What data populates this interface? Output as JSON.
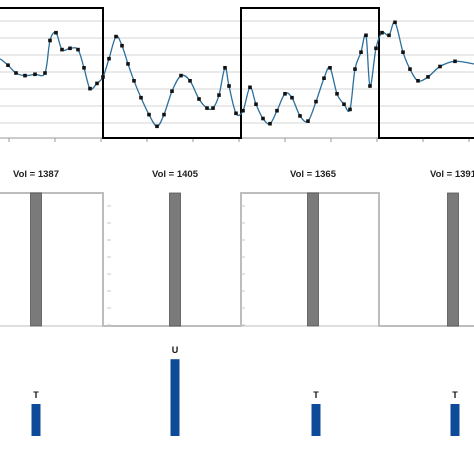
{
  "colors": {
    "signal": "#2c6f9c",
    "marker": "#111111",
    "square_wave": "#000000",
    "volume_bar": "#7a7a7a",
    "volume_outline": "#bdbdbd",
    "flag_bar": "#0d4a98",
    "grid": "#c8c8c8"
  },
  "chart_data": [
    {
      "type": "line",
      "title": "",
      "xlabel": "",
      "ylabel": "",
      "xlim": [
        0,
        474
      ],
      "ylim": [
        0,
        10
      ],
      "grid": true,
      "series": [
        {
          "values": [
            [
              0,
              6.1
            ],
            [
              8,
              5.6
            ],
            [
              16,
              5.0
            ],
            [
              25,
              4.8
            ],
            [
              35,
              4.9
            ],
            [
              45,
              5.0
            ],
            [
              50,
              7.5
            ],
            [
              56,
              8.1
            ],
            [
              62,
              6.8
            ],
            [
              70,
              6.9
            ],
            [
              78,
              6.8
            ],
            [
              84,
              5.4
            ],
            [
              90,
              3.8
            ],
            [
              97,
              4.2
            ],
            [
              103,
              4.7
            ],
            [
              109,
              6.1
            ],
            [
              116,
              7.8
            ],
            [
              122,
              7.1
            ],
            [
              128,
              5.7
            ],
            [
              134,
              4.4
            ],
            [
              141,
              3.1
            ],
            [
              149,
              1.8
            ],
            [
              157,
              0.9
            ],
            [
              164,
              1.8
            ],
            [
              172,
              3.6
            ],
            [
              181,
              4.8
            ],
            [
              190,
              4.4
            ],
            [
              199,
              3.0
            ],
            [
              207,
              2.3
            ],
            [
              213,
              2.3
            ],
            [
              219,
              3.3
            ],
            [
              225,
              5.4
            ],
            [
              229,
              4.0
            ],
            [
              236,
              1.9
            ],
            [
              243,
              2.1
            ],
            [
              250,
              3.9
            ],
            [
              256,
              2.6
            ],
            [
              263,
              1.5
            ],
            [
              270,
              1.1
            ],
            [
              277,
              2.1
            ],
            [
              285,
              3.4
            ],
            [
              292,
              3.1
            ],
            [
              300,
              1.7
            ],
            [
              308,
              1.3
            ],
            [
              316,
              2.8
            ],
            [
              324,
              4.6
            ],
            [
              330,
              5.4
            ],
            [
              337,
              3.4
            ],
            [
              344,
              2.6
            ],
            [
              350,
              2.2
            ],
            [
              355,
              5.3
            ],
            [
              361,
              6.6
            ],
            [
              366,
              7.9
            ],
            [
              370,
              4.0
            ],
            [
              376,
              6.9
            ],
            [
              382,
              8.1
            ],
            [
              389,
              7.9
            ],
            [
              395,
              8.9
            ],
            [
              403,
              6.6
            ],
            [
              410,
              5.3
            ],
            [
              418,
              4.4
            ],
            [
              428,
              4.7
            ],
            [
              440,
              5.5
            ],
            [
              455,
              5.9
            ],
            [
              474,
              5.7
            ]
          ]
        },
        {
          "values": [
            [
              0,
              10
            ],
            [
              103,
              10
            ],
            [
              103,
              0
            ],
            [
              241,
              0
            ],
            [
              241,
              10
            ],
            [
              379,
              10
            ],
            [
              379,
              0
            ],
            [
              474,
              0
            ]
          ]
        }
      ]
    },
    {
      "type": "bar",
      "title": "",
      "xlabel": "",
      "ylabel": "",
      "xlim": [
        0,
        474
      ],
      "ylim": [
        0,
        10
      ],
      "grid": false,
      "annotations": [
        "Vol = 1387",
        "Vol = 1405",
        "Vol = 1365",
        "Vol = 1391"
      ],
      "series": [
        {
          "x": [
            36,
            175,
            313,
            453
          ],
          "values": [
            10,
            10,
            10,
            10
          ]
        },
        {
          "values": [
            [
              0,
              10
            ],
            [
              103,
              10
            ],
            [
              103,
              0
            ],
            [
              241,
              0
            ],
            [
              241,
              10
            ],
            [
              379,
              10
            ],
            [
              379,
              0
            ],
            [
              474,
              0
            ]
          ]
        }
      ]
    },
    {
      "type": "bar",
      "title": "",
      "xlabel": "",
      "ylabel": "",
      "xlim": [
        0,
        474
      ],
      "ylim": [
        0,
        2.5
      ],
      "grid": false,
      "categories": [
        "T",
        "U",
        "T",
        "T"
      ],
      "series": [
        {
          "x": [
            36,
            175,
            316,
            455
          ],
          "values": [
            1,
            2.4,
            1,
            1
          ]
        }
      ]
    }
  ]
}
